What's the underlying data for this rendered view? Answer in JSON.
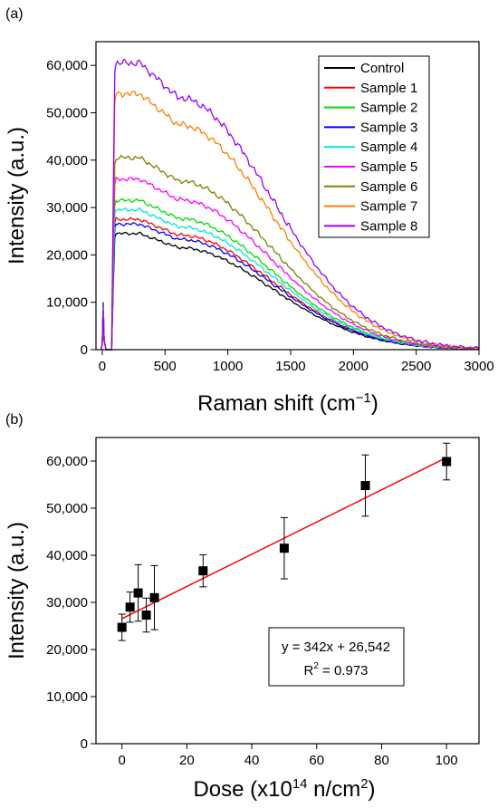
{
  "chart_data": [
    {
      "panel_label": "(a)",
      "type": "line",
      "xlabel_main": "Raman shift (cm",
      "xlabel_sup": "−1",
      "xlabel_close": ")",
      "ylabel": "Intensity (a.u.)",
      "xlim": [
        -50,
        3000
      ],
      "ylim": [
        0,
        65000
      ],
      "xticks": [
        0,
        500,
        1000,
        1500,
        2000,
        2500,
        3000
      ],
      "yticks": [
        0,
        10000,
        20000,
        30000,
        40000,
        50000,
        60000
      ],
      "xtick_labels": [
        "0",
        "500",
        "1000",
        "1500",
        "2000",
        "2500",
        "3000"
      ],
      "ytick_labels": [
        "0",
        "10,000",
        "20,000",
        "30,000",
        "40,000",
        "50,000",
        "60,000"
      ],
      "legend_position": "top-right",
      "series": [
        {
          "name": "Control",
          "color": "#000000",
          "plateau": 24500
        },
        {
          "name": "Sample 1",
          "color": "#ff0000",
          "plateau": 27500
        },
        {
          "name": "Sample 2",
          "color": "#00dd00",
          "plateau": 31500
        },
        {
          "name": "Sample 3",
          "color": "#0000ff",
          "plateau": 26500
        },
        {
          "name": "Sample 4",
          "color": "#00e5e5",
          "plateau": 29500
        },
        {
          "name": "Sample 5",
          "color": "#ff00ff",
          "plateau": 36000
        },
        {
          "name": "Sample 6",
          "color": "#808000",
          "plateau": 40500
        },
        {
          "name": "Sample 7",
          "color": "#ff8000",
          "plateau": 54000
        },
        {
          "name": "Sample 8",
          "color": "#9900ff",
          "plateau": 60500
        }
      ]
    },
    {
      "panel_label": "(b)",
      "type": "scatter",
      "xlabel_main": "Dose (x10",
      "xlabel_sup1": "14",
      "xlabel_mid": " n/cm",
      "xlabel_sup2": "2",
      "xlabel_close": ")",
      "ylabel": "Intensity (a.u.)",
      "xlim": [
        -8,
        110
      ],
      "ylim": [
        0,
        65000
      ],
      "xticks": [
        0,
        20,
        40,
        60,
        80,
        100
      ],
      "yticks": [
        0,
        10000,
        20000,
        30000,
        40000,
        50000,
        60000
      ],
      "xtick_labels": [
        "0",
        "20",
        "40",
        "60",
        "80",
        "100"
      ],
      "ytick_labels": [
        "0",
        "10,000",
        "20,000",
        "30,000",
        "40,000",
        "50,000",
        "60,000"
      ],
      "points": [
        {
          "x": 0,
          "y": 24700,
          "err": 2800
        },
        {
          "x": 2.5,
          "y": 29000,
          "err": 3200
        },
        {
          "x": 5,
          "y": 32000,
          "err": 6000
        },
        {
          "x": 7.5,
          "y": 27300,
          "err": 3600
        },
        {
          "x": 10,
          "y": 31000,
          "err": 6800
        },
        {
          "x": 25,
          "y": 36700,
          "err": 3400
        },
        {
          "x": 50,
          "y": 41500,
          "err": 6500
        },
        {
          "x": 75,
          "y": 54800,
          "err": 6500
        },
        {
          "x": 100,
          "y": 59900,
          "err": 3900
        }
      ],
      "fit": {
        "slope": 342,
        "intercept": 26542,
        "color": "#ff0000"
      },
      "equation": "y = 342x + 26,542",
      "r2_prefix": "R",
      "r2_sup": "2",
      "r2_suffix": " = 0.973"
    }
  ]
}
